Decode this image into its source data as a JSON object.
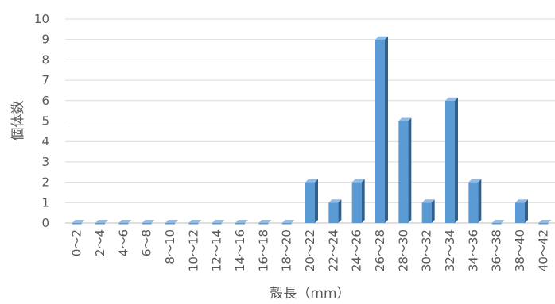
{
  "chart_data": {
    "type": "bar",
    "title": "",
    "xlabel": "殻長（mm）",
    "ylabel": "個体数",
    "ylim": [
      0,
      10
    ],
    "yticks": [
      0,
      1,
      2,
      3,
      4,
      5,
      6,
      7,
      8,
      9,
      10
    ],
    "grid": true,
    "legend": "none",
    "categories": [
      "0～2",
      "2～4",
      "4～6",
      "6～8",
      "8～10",
      "10～12",
      "12～14",
      "14～16",
      "16～18",
      "18～20",
      "20～22",
      "22～24",
      "24～26",
      "26～28",
      "28～30",
      "30～32",
      "32～34",
      "34～36",
      "36～38",
      "38～40",
      "40～42"
    ],
    "values": [
      0,
      0,
      0,
      0,
      0,
      0,
      0,
      0,
      0,
      0,
      2,
      1,
      2,
      9,
      5,
      1,
      6,
      2,
      0,
      1,
      0
    ],
    "colors": {
      "bar_front": "#5b9bd5",
      "bar_side": "#2e5f8f",
      "bar_top": "#8fbbe6",
      "text": "#595959",
      "grid": "#d9d9d9"
    }
  }
}
